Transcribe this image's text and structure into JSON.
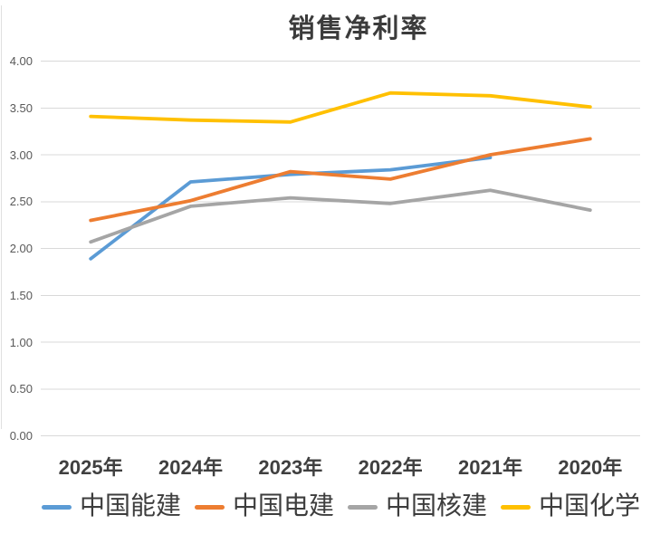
{
  "chart_data": {
    "type": "line",
    "title": "销售净利率",
    "categories": [
      "2025年",
      "2024年",
      "2023年",
      "2022年",
      "2021年",
      "2020年"
    ],
    "series": [
      {
        "name": "中国能建",
        "color": "#5B9BD5",
        "values": [
          1.89,
          2.71,
          2.79,
          2.84,
          2.97,
          null
        ]
      },
      {
        "name": "中国电建",
        "color": "#ED7D31",
        "values": [
          2.3,
          2.51,
          2.82,
          2.74,
          3.0,
          3.17
        ]
      },
      {
        "name": "中国核建",
        "color": "#A5A5A5",
        "values": [
          2.07,
          2.45,
          2.54,
          2.48,
          2.62,
          2.41
        ]
      },
      {
        "name": "中国化学",
        "color": "#FFC000",
        "values": [
          3.41,
          3.37,
          3.35,
          3.66,
          3.63,
          3.51
        ]
      }
    ],
    "ylim": [
      0,
      4
    ],
    "ytick_step": 0.5,
    "ytick_labels": [
      "0.00",
      "0.50",
      "1.00",
      "1.50",
      "2.00",
      "2.50",
      "3.00",
      "3.50",
      "4.00"
    ],
    "grid": true,
    "legend_position": "bottom",
    "colors": {
      "gridline": "#D9D9D9",
      "y_tick_label": "#595959",
      "x_category_label": "#404040",
      "title": "#3B3B3B",
      "legend_label": "#3D3D3D",
      "background": "#FFFFFF"
    }
  }
}
